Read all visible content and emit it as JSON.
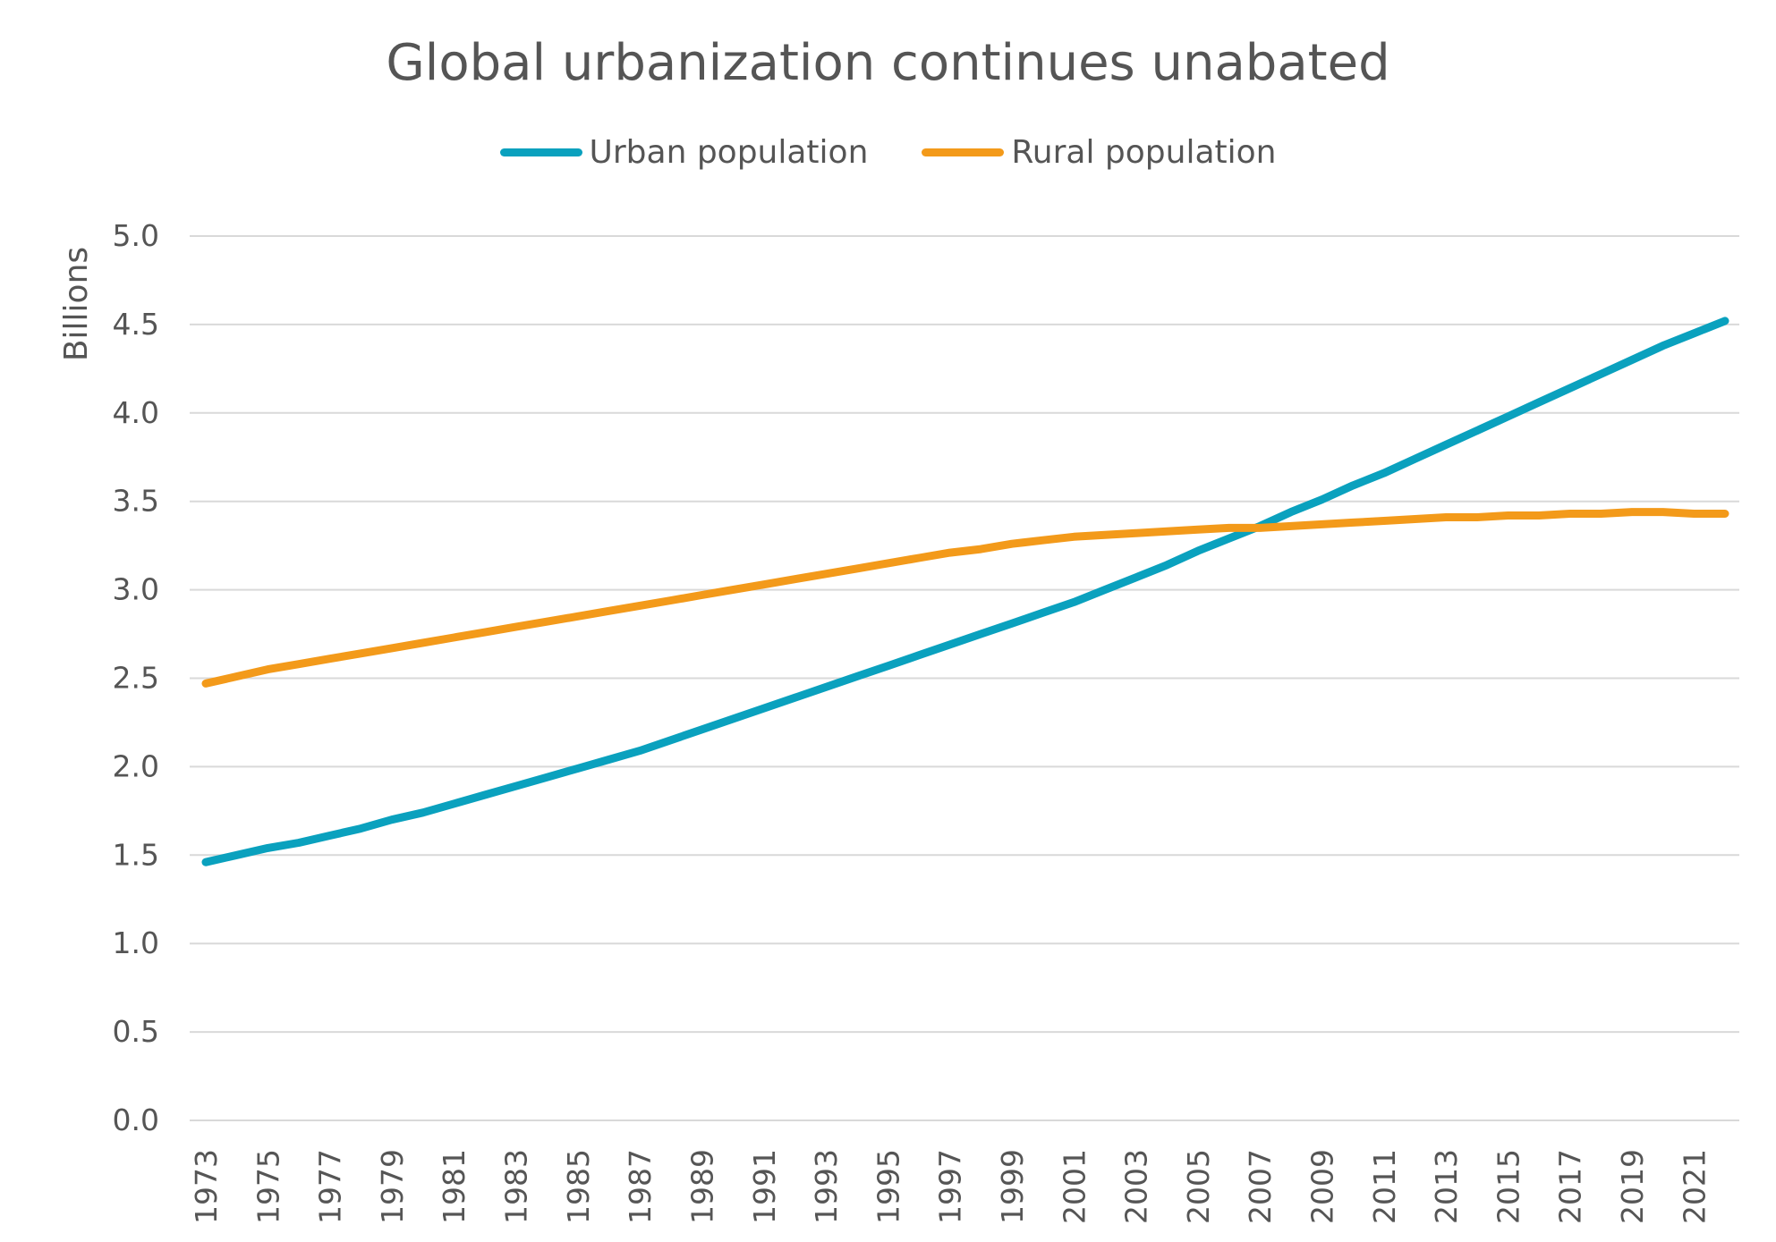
{
  "chart_data": {
    "type": "line",
    "title": "Global urbanization continues unabated",
    "ylabel": "Billions",
    "xlabel": "",
    "ylim": [
      0,
      5
    ],
    "y_ticks": [
      "0.0",
      "0.5",
      "1.0",
      "1.5",
      "2.0",
      "2.5",
      "3.0",
      "3.5",
      "4.0",
      "4.5",
      "5.0"
    ],
    "x_tick_labels": [
      "1973",
      "1975",
      "1977",
      "1979",
      "1981",
      "1983",
      "1985",
      "1987",
      "1989",
      "1991",
      "1993",
      "1995",
      "1997",
      "1999",
      "2001",
      "2003",
      "2005",
      "2007",
      "2009",
      "2011",
      "2013",
      "2015",
      "2017",
      "2019",
      "2021"
    ],
    "x": [
      1973,
      1974,
      1975,
      1976,
      1977,
      1978,
      1979,
      1980,
      1981,
      1982,
      1983,
      1984,
      1985,
      1986,
      1987,
      1988,
      1989,
      1990,
      1991,
      1992,
      1993,
      1994,
      1995,
      1996,
      1997,
      1998,
      1999,
      2000,
      2001,
      2002,
      2003,
      2004,
      2005,
      2006,
      2007,
      2008,
      2009,
      2010,
      2011,
      2012,
      2013,
      2014,
      2015,
      2016,
      2017,
      2018,
      2019,
      2020,
      2021,
      2022
    ],
    "grid": true,
    "legend_position": "top",
    "series": [
      {
        "name": "Urban population",
        "color": "#0aa1be",
        "values": [
          1.46,
          1.5,
          1.54,
          1.57,
          1.61,
          1.65,
          1.7,
          1.74,
          1.79,
          1.84,
          1.89,
          1.94,
          1.99,
          2.04,
          2.09,
          2.15,
          2.21,
          2.27,
          2.33,
          2.39,
          2.45,
          2.51,
          2.57,
          2.63,
          2.69,
          2.75,
          2.81,
          2.87,
          2.93,
          3.0,
          3.07,
          3.14,
          3.22,
          3.29,
          3.36,
          3.44,
          3.51,
          3.59,
          3.66,
          3.74,
          3.82,
          3.9,
          3.98,
          4.06,
          4.14,
          4.22,
          4.3,
          4.38,
          4.45,
          4.52
        ]
      },
      {
        "name": "Rural population",
        "color": "#f39a1a",
        "values": [
          2.47,
          2.51,
          2.55,
          2.58,
          2.61,
          2.64,
          2.67,
          2.7,
          2.73,
          2.76,
          2.79,
          2.82,
          2.85,
          2.88,
          2.91,
          2.94,
          2.97,
          3.0,
          3.03,
          3.06,
          3.09,
          3.12,
          3.15,
          3.18,
          3.21,
          3.23,
          3.26,
          3.28,
          3.3,
          3.31,
          3.32,
          3.33,
          3.34,
          3.35,
          3.35,
          3.36,
          3.37,
          3.38,
          3.39,
          3.4,
          3.41,
          3.41,
          3.42,
          3.42,
          3.43,
          3.43,
          3.44,
          3.44,
          3.43,
          3.43
        ]
      }
    ]
  }
}
